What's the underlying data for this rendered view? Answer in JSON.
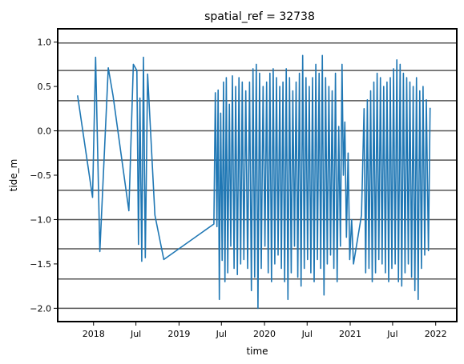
{
  "chart_data": {
    "type": "line",
    "title": "spatial_ref = 32738",
    "xlabel": "time",
    "ylabel": "tide_m",
    "xlim": [
      "2017-08-01",
      "2022-04-01"
    ],
    "ylim": [
      -2.15,
      1.15
    ],
    "yticks": [
      {
        "value": 1.0,
        "label": "1.0"
      },
      {
        "value": 0.5,
        "label": "0.5"
      },
      {
        "value": 0.0,
        "label": "0.0"
      },
      {
        "value": -0.5,
        "label": "−0.5"
      },
      {
        "value": -1.0,
        "label": "−1.0"
      },
      {
        "value": -1.5,
        "label": "−1.5"
      },
      {
        "value": -2.0,
        "label": "−2.0"
      }
    ],
    "xticks": [
      {
        "value": "2018-01-01",
        "label": "2018"
      },
      {
        "value": "2018-07-01",
        "label": "Jul"
      },
      {
        "value": "2019-01-01",
        "label": "2019"
      },
      {
        "value": "2019-07-01",
        "label": "Jul"
      },
      {
        "value": "2020-01-01",
        "label": "2020"
      },
      {
        "value": "2020-07-01",
        "label": "Jul"
      },
      {
        "value": "2021-01-01",
        "label": "2021"
      },
      {
        "value": "2021-07-01",
        "label": "Jul"
      },
      {
        "value": "2022-01-01",
        "label": "2022"
      }
    ],
    "hlines": [
      0.99,
      0.68,
      0.34,
      0.0,
      -0.33,
      -0.67,
      -1.0,
      -1.33,
      -1.67,
      -2.0
    ],
    "line_color": "#1f77b4",
    "hline_color": "#555555",
    "grid": false,
    "series": [
      {
        "points": [
          [
            "2017-10-25",
            0.4
          ],
          [
            "2017-12-28",
            -0.75
          ],
          [
            "2018-01-10",
            0.83
          ],
          [
            "2018-01-28",
            -1.36
          ],
          [
            "2018-03-05",
            0.71
          ],
          [
            "2018-03-25",
            0.4
          ],
          [
            "2018-06-01",
            -0.9
          ],
          [
            "2018-06-20",
            0.75
          ],
          [
            "2018-07-05",
            0.68
          ],
          [
            "2018-07-12",
            -1.28
          ],
          [
            "2018-07-18",
            0.37
          ],
          [
            "2018-07-26",
            -1.47
          ],
          [
            "2018-08-02",
            0.83
          ],
          [
            "2018-08-10",
            -1.43
          ],
          [
            "2018-08-20",
            0.64
          ],
          [
            "2018-09-20",
            -0.95
          ],
          [
            "2018-10-28",
            -1.45
          ],
          [
            "2019-05-30",
            -1.05
          ],
          [
            "2019-06-05",
            0.43
          ],
          [
            "2019-06-12",
            -1.08
          ],
          [
            "2019-06-17",
            0.46
          ],
          [
            "2019-06-22",
            -1.9
          ],
          [
            "2019-06-28",
            0.2
          ],
          [
            "2019-07-04",
            -1.46
          ],
          [
            "2019-07-10",
            0.55
          ],
          [
            "2019-07-16",
            -1.7
          ],
          [
            "2019-07-22",
            0.6
          ],
          [
            "2019-07-28",
            -1.6
          ],
          [
            "2019-08-04",
            0.3
          ],
          [
            "2019-08-10",
            -1.3
          ],
          [
            "2019-08-17",
            0.62
          ],
          [
            "2019-08-24",
            -1.55
          ],
          [
            "2019-08-31",
            0.5
          ],
          [
            "2019-09-07",
            -1.62
          ],
          [
            "2019-09-14",
            0.6
          ],
          [
            "2019-09-21",
            -1.5
          ],
          [
            "2019-09-28",
            0.55
          ],
          [
            "2019-10-05",
            -1.45
          ],
          [
            "2019-10-13",
            0.45
          ],
          [
            "2019-10-21",
            -1.55
          ],
          [
            "2019-10-29",
            0.55
          ],
          [
            "2019-11-06",
            -1.8
          ],
          [
            "2019-11-13",
            0.7
          ],
          [
            "2019-11-20",
            -1.65
          ],
          [
            "2019-11-27",
            0.75
          ],
          [
            "2019-12-04",
            -2.0
          ],
          [
            "2019-12-11",
            0.65
          ],
          [
            "2019-12-18",
            -1.55
          ],
          [
            "2019-12-26",
            0.5
          ],
          [
            "2020-01-03",
            -1.3
          ],
          [
            "2020-01-10",
            0.55
          ],
          [
            "2020-01-17",
            -1.6
          ],
          [
            "2020-01-24",
            0.65
          ],
          [
            "2020-01-31",
            -1.7
          ],
          [
            "2020-02-07",
            0.7
          ],
          [
            "2020-02-14",
            -1.5
          ],
          [
            "2020-02-21",
            0.6
          ],
          [
            "2020-02-28",
            -1.4
          ],
          [
            "2020-03-06",
            0.5
          ],
          [
            "2020-03-13",
            -1.55
          ],
          [
            "2020-03-20",
            0.55
          ],
          [
            "2020-03-27",
            -1.7
          ],
          [
            "2020-04-03",
            0.7
          ],
          [
            "2020-04-10",
            -1.9
          ],
          [
            "2020-04-17",
            0.6
          ],
          [
            "2020-04-24",
            -1.6
          ],
          [
            "2020-05-01",
            0.45
          ],
          [
            "2020-05-08",
            -1.3
          ],
          [
            "2020-05-15",
            0.55
          ],
          [
            "2020-05-22",
            -1.65
          ],
          [
            "2020-05-29",
            0.65
          ],
          [
            "2020-06-05",
            -1.75
          ],
          [
            "2020-06-12",
            0.85
          ],
          [
            "2020-06-19",
            -1.55
          ],
          [
            "2020-06-26",
            0.6
          ],
          [
            "2020-07-03",
            -1.45
          ],
          [
            "2020-07-10",
            0.5
          ],
          [
            "2020-07-17",
            -1.6
          ],
          [
            "2020-07-24",
            0.6
          ],
          [
            "2020-07-31",
            -1.7
          ],
          [
            "2020-08-07",
            0.75
          ],
          [
            "2020-08-14",
            -1.45
          ],
          [
            "2020-08-21",
            0.65
          ],
          [
            "2020-08-28",
            -1.55
          ],
          [
            "2020-09-04",
            0.85
          ],
          [
            "2020-09-11",
            -1.85
          ],
          [
            "2020-09-18",
            0.6
          ],
          [
            "2020-09-25",
            -1.5
          ],
          [
            "2020-10-02",
            0.5
          ],
          [
            "2020-10-09",
            -1.4
          ],
          [
            "2020-10-16",
            0.45
          ],
          [
            "2020-10-23",
            -1.55
          ],
          [
            "2020-10-30",
            0.65
          ],
          [
            "2020-11-06",
            -1.7
          ],
          [
            "2020-11-13",
            0.05
          ],
          [
            "2020-11-20",
            -1.3
          ],
          [
            "2020-11-27",
            0.75
          ],
          [
            "2020-12-03",
            -0.5
          ],
          [
            "2020-12-09",
            0.1
          ],
          [
            "2020-12-16",
            -1.2
          ],
          [
            "2020-12-23",
            -0.25
          ],
          [
            "2020-12-30",
            -1.45
          ],
          [
            "2021-01-07",
            -1.0
          ],
          [
            "2021-01-15",
            -1.5
          ],
          [
            "2021-02-18",
            -0.95
          ],
          [
            "2021-03-01",
            0.25
          ],
          [
            "2021-03-08",
            -1.6
          ],
          [
            "2021-03-15",
            0.35
          ],
          [
            "2021-03-22",
            -1.55
          ],
          [
            "2021-03-29",
            0.45
          ],
          [
            "2021-04-05",
            -1.7
          ],
          [
            "2021-04-12",
            0.55
          ],
          [
            "2021-04-19",
            -1.6
          ],
          [
            "2021-04-26",
            0.65
          ],
          [
            "2021-05-03",
            -1.45
          ],
          [
            "2021-05-10",
            0.6
          ],
          [
            "2021-05-17",
            -1.5
          ],
          [
            "2021-05-24",
            0.5
          ],
          [
            "2021-05-31",
            -1.6
          ],
          [
            "2021-06-07",
            0.55
          ],
          [
            "2021-06-14",
            -1.7
          ],
          [
            "2021-06-21",
            0.6
          ],
          [
            "2021-06-28",
            -1.55
          ],
          [
            "2021-07-05",
            0.7
          ],
          [
            "2021-07-12",
            -1.5
          ],
          [
            "2021-07-19",
            0.8
          ],
          [
            "2021-07-26",
            -1.7
          ],
          [
            "2021-08-02",
            0.75
          ],
          [
            "2021-08-09",
            -1.75
          ],
          [
            "2021-08-16",
            0.65
          ],
          [
            "2021-08-23",
            -1.6
          ],
          [
            "2021-08-30",
            0.6
          ],
          [
            "2021-09-06",
            -1.5
          ],
          [
            "2021-09-13",
            0.55
          ],
          [
            "2021-09-20",
            -1.65
          ],
          [
            "2021-09-27",
            0.5
          ],
          [
            "2021-10-04",
            -1.8
          ],
          [
            "2021-10-11",
            0.6
          ],
          [
            "2021-10-18",
            -1.9
          ],
          [
            "2021-10-25",
            0.45
          ],
          [
            "2021-11-01",
            -1.55
          ],
          [
            "2021-11-08",
            0.5
          ],
          [
            "2021-11-15",
            -1.4
          ],
          [
            "2021-11-22",
            0.35
          ],
          [
            "2021-12-01",
            -1.35
          ],
          [
            "2021-12-08",
            0.26
          ]
        ]
      }
    ]
  }
}
